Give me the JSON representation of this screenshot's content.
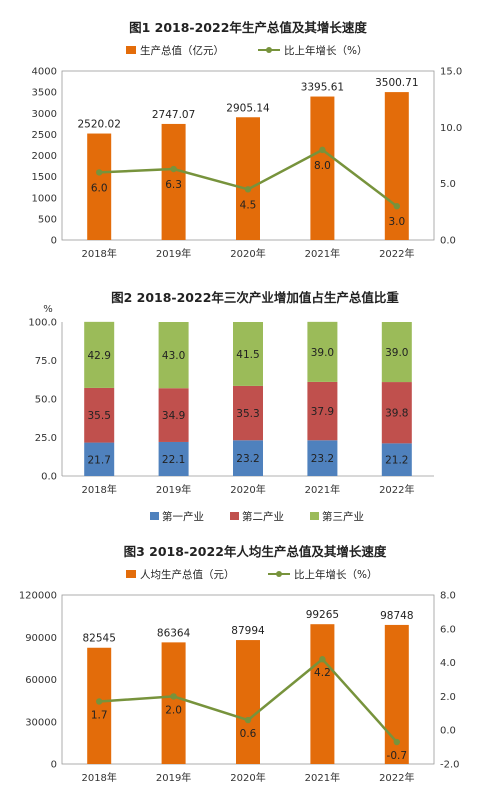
{
  "colors": {
    "bar": "#e36c0a",
    "line": "#77933c",
    "primary": "#4f81bd",
    "secondary": "#c0504d",
    "tertiary": "#9bbb59",
    "axis": "#999999"
  },
  "chart_data": [
    {
      "type": "bar",
      "title": "图1   2018-2022年生产总值及其增长速度",
      "categories": [
        "2018年",
        "2019年",
        "2020年",
        "2021年",
        "2022年"
      ],
      "legend_placement": "top",
      "grid": false,
      "ylim": [
        0,
        4000
      ],
      "yticks": [
        "0",
        "500",
        "1000",
        "1500",
        "2000",
        "2500",
        "3000",
        "3500",
        "4000"
      ],
      "y2lim": [
        0,
        15
      ],
      "y2ticks": [
        "0.0",
        "5.0",
        "10.0",
        "15.0"
      ],
      "series": [
        {
          "name": "生产总值（亿元）",
          "type": "bar",
          "axis": "left",
          "values": [
            2520.02,
            2747.07,
            2905.14,
            3395.61,
            3500.71
          ],
          "labels": [
            "2520.02",
            "2747.07",
            "2905.14",
            "3395.61",
            "3500.71"
          ]
        },
        {
          "name": "比上年增长（%）",
          "type": "line",
          "axis": "right",
          "values": [
            6.0,
            6.3,
            4.5,
            8.0,
            3.0
          ],
          "labels": [
            "6.0",
            "6.3",
            "4.5",
            "8.0",
            "3.0"
          ]
        }
      ]
    },
    {
      "type": "bar",
      "stacked": true,
      "title": "图2   2018-2022年三次产业增加值占生产总值比重",
      "yunit": "%",
      "categories": [
        "2018年",
        "2019年",
        "2020年",
        "2021年",
        "2022年"
      ],
      "legend_placement": "bottom",
      "grid": false,
      "ylim": [
        0,
        100
      ],
      "yticks": [
        "0.0",
        "25.0",
        "50.0",
        "75.0",
        "100.0"
      ],
      "series": [
        {
          "name": "第一产业",
          "values": [
            21.7,
            22.1,
            23.2,
            23.2,
            21.2
          ],
          "labels": [
            "21.7",
            "22.1",
            "23.2",
            "23.2",
            "21.2"
          ]
        },
        {
          "name": "第二产业",
          "values": [
            35.5,
            34.9,
            35.3,
            37.9,
            39.8
          ],
          "labels": [
            "35.5",
            "34.9",
            "35.3",
            "37.9",
            "39.8"
          ]
        },
        {
          "name": "第三产业",
          "values": [
            42.9,
            43.0,
            41.5,
            39.0,
            39.0
          ],
          "labels": [
            "42.9",
            "43.0",
            "41.5",
            "39.0",
            "39.0"
          ]
        }
      ]
    },
    {
      "type": "bar",
      "title": "图3   2018-2022年人均生产总值及其增长速度",
      "categories": [
        "2018年",
        "2019年",
        "2020年",
        "2021年",
        "2022年"
      ],
      "legend_placement": "top",
      "grid": false,
      "ylim": [
        0,
        120000
      ],
      "yticks": [
        "0",
        "30000",
        "60000",
        "90000",
        "120000"
      ],
      "y2lim": [
        -2,
        8
      ],
      "y2ticks": [
        "-2.0",
        "0.0",
        "2.0",
        "4.0",
        "6.0",
        "8.0"
      ],
      "series": [
        {
          "name": "人均生产总值（元）",
          "type": "bar",
          "axis": "left",
          "values": [
            82545,
            86364,
            87994,
            99265,
            98748
          ],
          "labels": [
            "82545",
            "86364",
            "87994",
            "99265",
            "98748"
          ]
        },
        {
          "name": "比上年增长（%）",
          "type": "line",
          "axis": "right",
          "values": [
            1.7,
            2.0,
            0.6,
            4.2,
            -0.7
          ],
          "labels": [
            "1.7",
            "2.0",
            "0.6",
            "4.2",
            "-0.7"
          ]
        }
      ]
    }
  ]
}
